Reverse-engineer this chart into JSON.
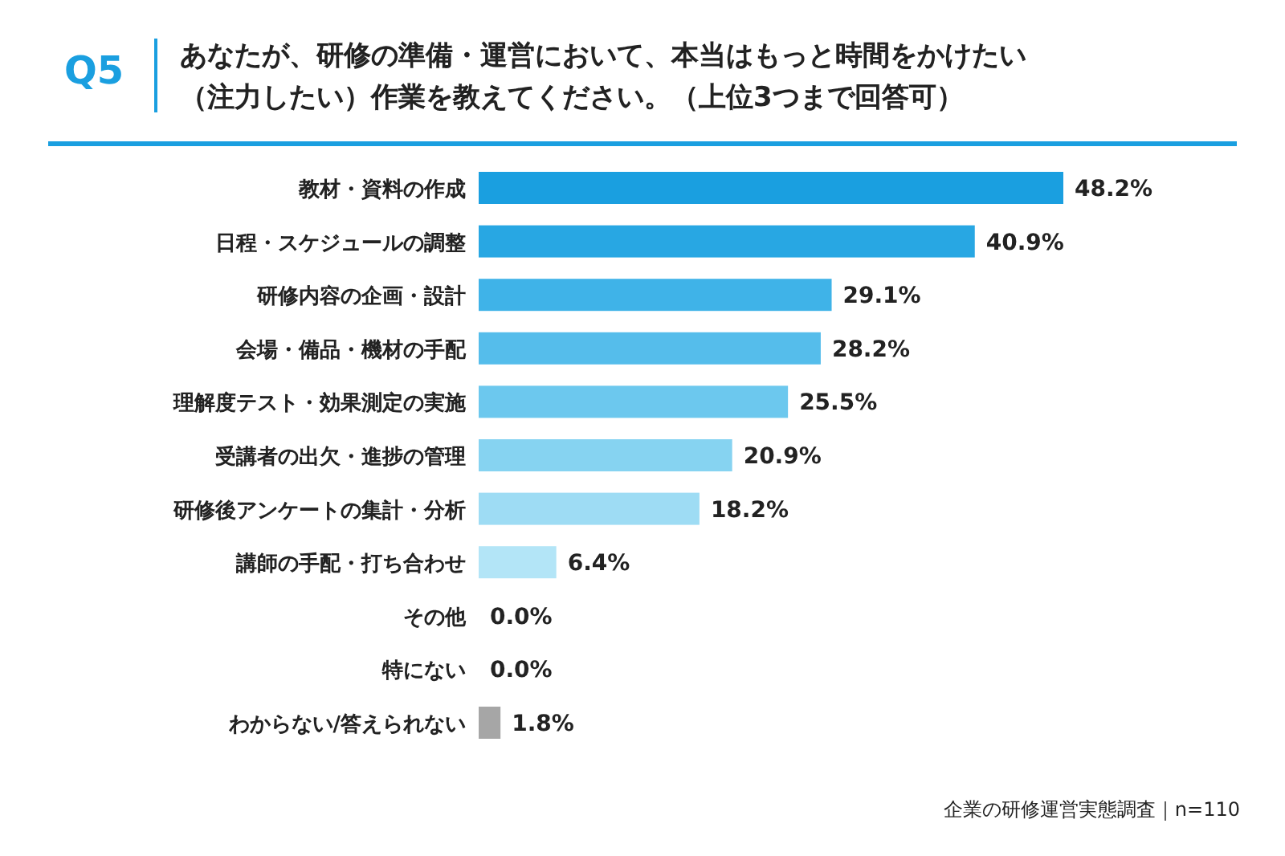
{
  "chart_data": {
    "type": "bar",
    "orientation": "horizontal",
    "title": "Q5",
    "subtitle": "あなたが、研修の準備・運営において、本当はもっと時間をかけたい（注力したい）作業を教えてください。（上位3つまで回答可）",
    "categories": [
      "教材・資料の作成",
      "日程・スケジュールの調整",
      "研修内容の企画・設計",
      "会場・備品・機材の手配",
      "理解度テスト・効果測定の実施",
      "受講者の出欠・進捗の管理",
      "研修後アンケートの集計・分析",
      "講師の手配・打ち合わせ",
      "その他",
      "特にない",
      "わからない/答えられない"
    ],
    "values": [
      48.2,
      40.9,
      29.1,
      28.2,
      25.5,
      20.9,
      18.2,
      6.4,
      0.0,
      0.0,
      1.8
    ],
    "value_labels": [
      "48.2%",
      "40.9%",
      "29.1%",
      "28.2%",
      "25.5%",
      "20.9%",
      "18.2%",
      "6.4%",
      "0.0%",
      "0.0%",
      "1.8%"
    ],
    "colors": [
      "#1a9fe0",
      "#28a7e3",
      "#3fb3e8",
      "#55bdeb",
      "#6cc8ee",
      "#86d3f1",
      "#9edcf4",
      "#b3e5f7",
      "#b3e5f7",
      "#b3e5f7",
      "#a6a6a6"
    ],
    "annotations": [
      "企業の研修運営実態調査｜n=110"
    ]
  }
}
